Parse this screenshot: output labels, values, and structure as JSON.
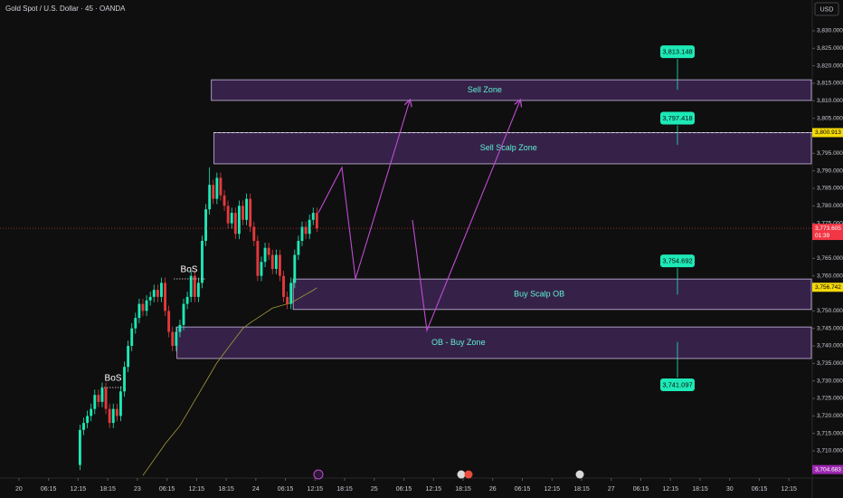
{
  "chart_data": {
    "type": "candlestick",
    "title": "Gold Spot / U.S. Dollar · 45 · OANDA",
    "currency": "USD",
    "up_color": "#1de9b6",
    "down_color": "#e5393b",
    "grid": false,
    "xlim": [
      -21.6,
      197.8
    ],
    "ylim": [
      3702.25,
      3838.79
    ],
    "xticks": [
      {
        "value": -16.5,
        "label": "20"
      },
      {
        "value": -8.5,
        "label": "06:15"
      },
      {
        "value": -0.5,
        "label": "12:15"
      },
      {
        "value": 7.5,
        "label": "18:15"
      },
      {
        "value": 15.5,
        "label": "23"
      },
      {
        "value": 23.5,
        "label": "06:15"
      },
      {
        "value": 31.5,
        "label": "12:15"
      },
      {
        "value": 39.5,
        "label": "18:15"
      },
      {
        "value": 47.5,
        "label": "24"
      },
      {
        "value": 55.5,
        "label": "06:15"
      },
      {
        "value": 63.5,
        "label": "12:15"
      },
      {
        "value": 71.5,
        "label": "18:15"
      },
      {
        "value": 79.5,
        "label": "25"
      },
      {
        "value": 87.5,
        "label": "06:15"
      },
      {
        "value": 95.5,
        "label": "12:15"
      },
      {
        "value": 103.5,
        "label": "18:15"
      },
      {
        "value": 111.5,
        "label": "26"
      },
      {
        "value": 119.5,
        "label": "06:15"
      },
      {
        "value": 127.5,
        "label": "12:15"
      },
      {
        "value": 135.5,
        "label": "18:15"
      },
      {
        "value": 143.5,
        "label": "27"
      },
      {
        "value": 151.5,
        "label": "06:15"
      },
      {
        "value": 159.5,
        "label": "12:15"
      },
      {
        "value": 167.5,
        "label": "18:15"
      },
      {
        "value": 175.5,
        "label": "30"
      },
      {
        "value": 183.5,
        "label": "06:15"
      },
      {
        "value": 191.5,
        "label": "12:15"
      }
    ],
    "yticks": [
      {
        "value": 3830,
        "label": "3,830.000"
      },
      {
        "value": 3825,
        "label": "3,825.000"
      },
      {
        "value": 3820,
        "label": "3,820.000"
      },
      {
        "value": 3815,
        "label": "3,815.000"
      },
      {
        "value": 3810,
        "label": "3,810.000"
      },
      {
        "value": 3805,
        "label": "3,805.000"
      },
      {
        "value": 3795,
        "label": "3,795.000"
      },
      {
        "value": 3790,
        "label": "3,790.000"
      },
      {
        "value": 3785,
        "label": "3,785.000"
      },
      {
        "value": 3780,
        "label": "3,780.000"
      },
      {
        "value": 3775,
        "label": "3,775.000"
      },
      {
        "value": 3765,
        "label": "3,765.000"
      },
      {
        "value": 3760,
        "label": "3,760.000"
      },
      {
        "value": 3750,
        "label": "3,750.000"
      },
      {
        "value": 3745,
        "label": "3,745.000"
      },
      {
        "value": 3740,
        "label": "3,740.000"
      },
      {
        "value": 3735,
        "label": "3,735.000"
      },
      {
        "value": 3730,
        "label": "3,730.000"
      },
      {
        "value": 3725,
        "label": "3,725.000"
      },
      {
        "value": 3720,
        "label": "3,720.000"
      },
      {
        "value": 3715,
        "label": "3,715.000"
      },
      {
        "value": 3710,
        "label": "3,710.000"
      }
    ],
    "open": [
      3706,
      3716,
      3718,
      3720,
      3722,
      3726,
      3724,
      3728,
      3722,
      3718,
      3722,
      3720,
      3727,
      3734,
      3740,
      3745,
      3748,
      3752,
      3750,
      3753,
      3754,
      3756,
      3754,
      3758,
      3750,
      3744,
      3740,
      3744,
      3746,
      3752,
      3754,
      3760,
      3754,
      3758,
      3770,
      3779,
      3786,
      3782,
      3788,
      3783,
      3780,
      3775,
      3778,
      3772,
      3780,
      3776,
      3782,
      3774,
      3770,
      3760,
      3764,
      3768,
      3766,
      3762,
      3766,
      3760,
      3754,
      3752,
      3758,
      3766,
      3770,
      3774,
      3772,
      3776,
      3778
    ],
    "high": [
      3717.5,
      3719.5,
      3721.5,
      3723.5,
      3727.5,
      3727.5,
      3729.5,
      3729.5,
      3723.5,
      3723.5,
      3723.5,
      3728.5,
      3735.5,
      3741.5,
      3746.5,
      3749.5,
      3753.5,
      3753.5,
      3754.5,
      3755.5,
      3757.5,
      3757.5,
      3759.5,
      3759.5,
      3751.5,
      3745.5,
      3745.5,
      3747.5,
      3753.5,
      3755.5,
      3761.5,
      3761.5,
      3759.5,
      3771.5,
      3780.5,
      3791,
      3787.5,
      3789.5,
      3789.5,
      3784.5,
      3781.5,
      3779.5,
      3779.5,
      3781.5,
      3781.5,
      3783.5,
      3783.5,
      3775.5,
      3771.5,
      3765.5,
      3769.5,
      3769.5,
      3767.5,
      3767.5,
      3767.5,
      3761.5,
      3755.5,
      3759.5,
      3767.5,
      3771.5,
      3775.5,
      3775.5,
      3777.5,
      3779.5,
      3779.5
    ],
    "low": [
      3704.5,
      3714.5,
      3716.5,
      3718.5,
      3720.5,
      3722.5,
      3722.5,
      3720.5,
      3716.5,
      3716.5,
      3718.5,
      3718.5,
      3725.5,
      3732.5,
      3738.5,
      3743.5,
      3746.5,
      3748.5,
      3748.5,
      3751.5,
      3752.5,
      3752.5,
      3752.5,
      3748.5,
      3742.5,
      3738.5,
      3738.5,
      3742.5,
      3744.5,
      3750.5,
      3752.5,
      3752.5,
      3752.5,
      3756.5,
      3768.5,
      3777.5,
      3780.5,
      3780.5,
      3781.5,
      3778.5,
      3773.5,
      3773.5,
      3770.5,
      3770.5,
      3774.5,
      3774.5,
      3772.5,
      3768.5,
      3758.5,
      3758.5,
      3762.5,
      3764.5,
      3760.5,
      3760.5,
      3758.5,
      3752.5,
      3750.5,
      3750.5,
      3756.5,
      3764.5,
      3768.5,
      3770.5,
      3770.5,
      3774.5,
      3772.5
    ],
    "close": [
      3716,
      3718,
      3720,
      3722,
      3726,
      3724,
      3728,
      3722,
      3718,
      3722,
      3720,
      3727,
      3734,
      3740,
      3745,
      3748,
      3752,
      3750,
      3753,
      3754,
      3756,
      3754,
      3758,
      3750,
      3744,
      3740,
      3744,
      3746,
      3752,
      3754,
      3760,
      3754,
      3758,
      3770,
      3779,
      3786,
      3782,
      3788,
      3783,
      3780,
      3775,
      3778,
      3772,
      3780,
      3776,
      3782,
      3774,
      3770,
      3760,
      3764,
      3768,
      3766,
      3762,
      3766,
      3760,
      3754,
      3752,
      3758,
      3766,
      3770,
      3774,
      3772,
      3776,
      3778,
      3773.6
    ],
    "moving_average": {
      "color": "#a39a3c",
      "values": [
        null,
        null,
        null,
        null,
        null,
        null,
        null,
        null,
        null,
        null,
        null,
        null,
        null,
        null,
        null,
        null,
        null,
        3703,
        3704.5,
        3706,
        3707.5,
        3709,
        3710.5,
        3712,
        3713.3,
        3714.6,
        3715.9,
        3717.2,
        3719,
        3720.8,
        3722.6,
        3724.4,
        3726.2,
        3728,
        3729.8,
        3731.6,
        3733.4,
        3735.2,
        3736.6,
        3738,
        3739.4,
        3740.8,
        3742.2,
        3743.6,
        3745,
        3745.8,
        3746.6,
        3747.3,
        3748,
        3748.7,
        3749.4,
        3750.1,
        3750.8,
        3751.1,
        3751.4,
        3751.7,
        3752,
        3752.3,
        3752.9,
        3753.5,
        3754.1,
        3754.7,
        3755.3,
        3755.9,
        3756.6
      ]
    },
    "zones": [
      {
        "name": "Sell Zone",
        "top": 3816.0,
        "bottom": 3810.1,
        "start": 35.5,
        "callout": {
          "value": 3813.148,
          "label": "3,813.148"
        }
      },
      {
        "name": "Sell Scalp Zone",
        "top": 3800.913,
        "bottom": 3792.0,
        "start": 36.2,
        "callout": {
          "value": 3797.418,
          "label": "3,797.418"
        }
      },
      {
        "name": "Buy Scalp OB",
        "top": 3759.1,
        "bottom": 3750.4,
        "start": 57.6,
        "callout": {
          "value": 3754.692,
          "label": "3,754.692"
        }
      },
      {
        "name": "OB - Buy Zone",
        "top": 3745.4,
        "bottom": 3736.4,
        "start": 26.2,
        "callout": {
          "value": 3741.097,
          "label": "3,741.097"
        }
      }
    ],
    "labels": [
      "BoS",
      "BoS"
    ],
    "price_tags": [
      {
        "value": 3800.913,
        "label": "3,800.913",
        "color": "#f5d90a",
        "text_color": "#000000"
      },
      {
        "value": 3773.605,
        "label": "3,773.605",
        "color": "#f23645",
        "text_color": "#ffffff",
        "countdown": "01:39"
      },
      {
        "value": 3756.742,
        "label": "3,756.742",
        "color": "#f5d90a",
        "text_color": "#000000"
      },
      {
        "value": 3704.683,
        "label": "3,704.683",
        "color": "#9c27b0",
        "text_color": "#ffffff"
      }
    ]
  }
}
